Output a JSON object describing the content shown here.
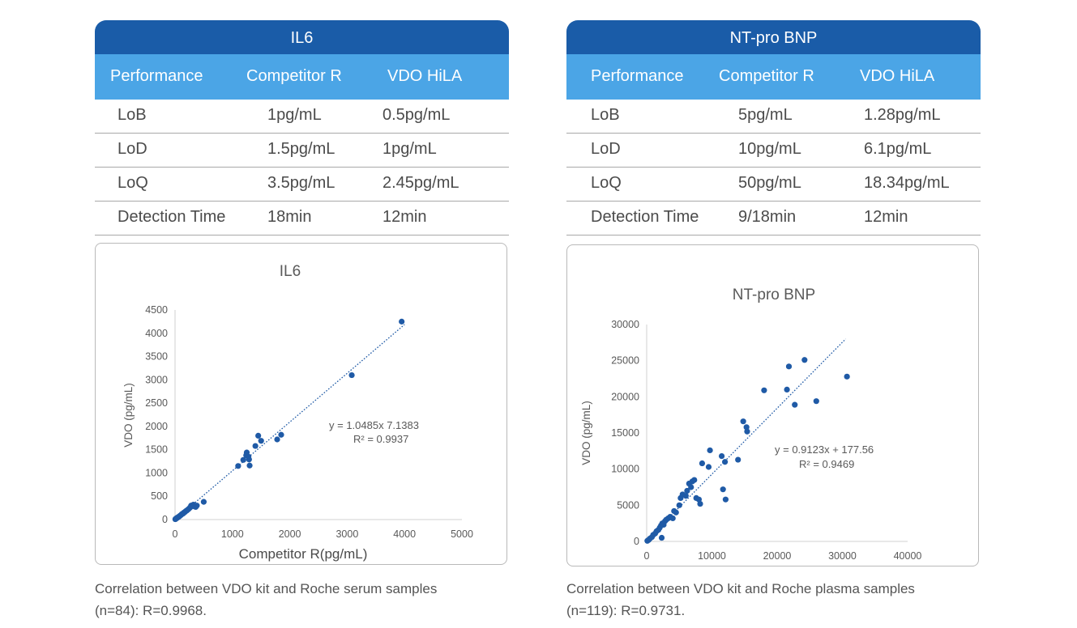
{
  "tables": [
    {
      "title": "IL6",
      "headers": [
        "Performance",
        "Competitor R",
        "VDO  HiLA"
      ],
      "rows": [
        [
          "LoB",
          "1pg/mL",
          "0.5pg/mL"
        ],
        [
          "LoD",
          "1.5pg/mL",
          "1pg/mL"
        ],
        [
          "LoQ",
          "3.5pg/mL",
          "2.45pg/mL"
        ],
        [
          "Detection Time",
          "18min",
          "12min"
        ]
      ]
    },
    {
      "title": "NT-pro BNP",
      "headers": [
        "Performance",
        "Competitor R",
        "VDO  HiLA"
      ],
      "rows": [
        [
          "LoB",
          "5pg/mL",
          "1.28pg/mL"
        ],
        [
          "LoD",
          "10pg/mL",
          "6.1pg/mL"
        ],
        [
          "LoQ",
          "50pg/mL",
          "18.34pg/mL"
        ],
        [
          "Detection Time",
          "9/18min",
          "12min"
        ]
      ]
    }
  ],
  "captions": [
    {
      "line1": "Correlation between VDO kit and Roche serum samples",
      "line2": "(n=84): R=0.9968."
    },
    {
      "line1": "Correlation between VDO kit and Roche plasma samples",
      "line2": "(n=119): R=0.9731."
    }
  ],
  "colors": {
    "header_dark": "#1a5ca8",
    "header_light": "#4ba5e6",
    "point": "#1f5aa6",
    "trend": "#1f5aa6"
  },
  "chart_data": [
    {
      "type": "scatter",
      "title": "IL6",
      "xlabel": "Competitor R(pg/mL)",
      "ylabel": "VDO (pg/mL)",
      "xlim": [
        0,
        5000
      ],
      "ylim": [
        0,
        4500
      ],
      "xticks": [
        0,
        1000,
        2000,
        3000,
        4000,
        5000
      ],
      "yticks": [
        0,
        500,
        1000,
        1500,
        2000,
        2500,
        3000,
        3500,
        4000,
        4500
      ],
      "equation": "y = 1.0485x   7.1383",
      "r2_label": "R² = 0.9937",
      "trendline": {
        "slope": 1.0485,
        "intercept": -7.1383,
        "x_range": [
          0,
          4000
        ]
      },
      "points": [
        [
          5,
          8
        ],
        [
          12,
          15
        ],
        [
          20,
          25
        ],
        [
          30,
          28
        ],
        [
          40,
          42
        ],
        [
          55,
          50
        ],
        [
          65,
          62
        ],
        [
          80,
          74
        ],
        [
          95,
          90
        ],
        [
          110,
          104
        ],
        [
          120,
          118
        ],
        [
          140,
          128
        ],
        [
          150,
          145
        ],
        [
          170,
          160
        ],
        [
          185,
          178
        ],
        [
          200,
          190
        ],
        [
          220,
          210
        ],
        [
          240,
          230
        ],
        [
          260,
          255
        ],
        [
          280,
          300
        ],
        [
          310,
          290
        ],
        [
          320,
          320
        ],
        [
          340,
          280
        ],
        [
          360,
          270
        ],
        [
          380,
          300
        ],
        [
          500,
          380
        ],
        [
          1100,
          1150
        ],
        [
          1190,
          1280
        ],
        [
          1240,
          1380
        ],
        [
          1250,
          1440
        ],
        [
          1280,
          1350
        ],
        [
          1290,
          1290
        ],
        [
          1300,
          1160
        ],
        [
          1400,
          1580
        ],
        [
          1450,
          1800
        ],
        [
          1500,
          1690
        ],
        [
          1780,
          1720
        ],
        [
          1850,
          1820
        ],
        [
          3080,
          3100
        ],
        [
          3950,
          4250
        ]
      ]
    },
    {
      "type": "scatter",
      "title": "NT-pro BNP",
      "xlabel": "Competitor R(pg/mL)",
      "ylabel": "VDO (pg/mL)",
      "xlim": [
        0,
        40000
      ],
      "ylim": [
        0,
        30000
      ],
      "xticks": [
        0,
        10000,
        20000,
        30000,
        40000
      ],
      "yticks": [
        0,
        5000,
        10000,
        15000,
        20000,
        25000,
        30000
      ],
      "equation": "y = 0.9123x + 177.56",
      "r2_label": "R² = 0.9469",
      "trendline": {
        "slope": 0.9123,
        "intercept": 177.56,
        "x_range": [
          0,
          30500
        ]
      },
      "points": [
        [
          100,
          80
        ],
        [
          300,
          200
        ],
        [
          500,
          400
        ],
        [
          800,
          600
        ],
        [
          1000,
          900
        ],
        [
          1300,
          1100
        ],
        [
          1500,
          1400
        ],
        [
          1800,
          1600
        ],
        [
          2000,
          1900
        ],
        [
          2200,
          2200
        ],
        [
          2400,
          2500
        ],
        [
          2600,
          2300
        ],
        [
          2800,
          2800
        ],
        [
          3000,
          3000
        ],
        [
          3300,
          3200
        ],
        [
          3600,
          3400
        ],
        [
          4000,
          3200
        ],
        [
          4200,
          4200
        ],
        [
          4500,
          4000
        ],
        [
          5000,
          5000
        ],
        [
          5200,
          6000
        ],
        [
          5500,
          6500
        ],
        [
          6000,
          6300
        ],
        [
          6200,
          7000
        ],
        [
          6500,
          8000
        ],
        [
          6800,
          7500
        ],
        [
          7000,
          8300
        ],
        [
          7300,
          8500
        ],
        [
          7600,
          6000
        ],
        [
          8000,
          5800
        ],
        [
          8200,
          5200
        ],
        [
          8500,
          10800
        ],
        [
          9500,
          10300
        ],
        [
          9700,
          12600
        ],
        [
          11500,
          11800
        ],
        [
          11700,
          7200
        ],
        [
          12000,
          11000
        ],
        [
          12100,
          5800
        ],
        [
          14000,
          11300
        ],
        [
          14800,
          16600
        ],
        [
          15300,
          15800
        ],
        [
          15400,
          15200
        ],
        [
          18000,
          20900
        ],
        [
          21500,
          21000
        ],
        [
          21800,
          24200
        ],
        [
          22700,
          18900
        ],
        [
          24200,
          25100
        ],
        [
          26000,
          19400
        ],
        [
          30700,
          22800
        ],
        [
          2300,
          500
        ]
      ]
    }
  ]
}
